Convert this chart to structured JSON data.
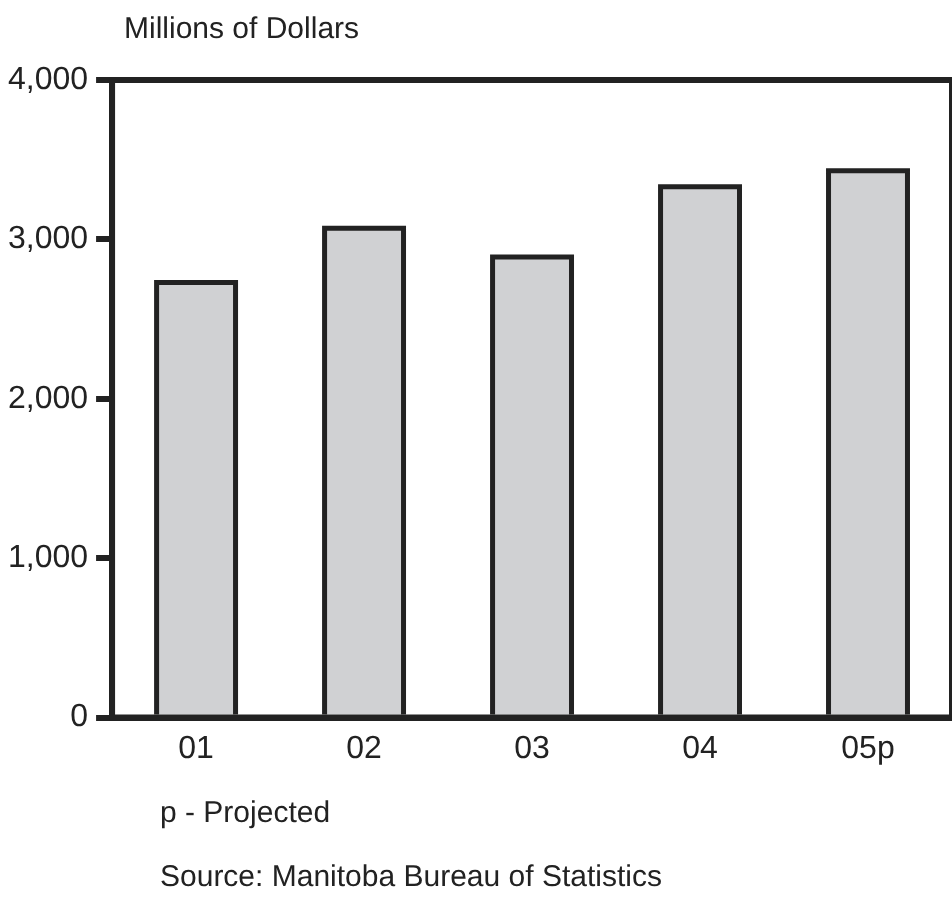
{
  "chart_data": {
    "type": "bar",
    "ylabel": "Millions of Dollars",
    "categories": [
      "01",
      "02",
      "03",
      "04",
      "05p"
    ],
    "values": [
      2730,
      3070,
      2890,
      3330,
      3430
    ],
    "color": "#d0d1d3",
    "ylim": [
      0,
      4000
    ],
    "yticks": [
      {
        "value": 0,
        "label": "0"
      },
      {
        "value": 1000,
        "label": "1,000"
      },
      {
        "value": 2000,
        "label": "2,000"
      },
      {
        "value": 3000,
        "label": "3,000"
      },
      {
        "value": 4000,
        "label": "4,000"
      }
    ],
    "grid": false,
    "legend": false,
    "annotations": [
      "p - Projected",
      "Source: Manitoba Bureau of Statistics"
    ]
  }
}
